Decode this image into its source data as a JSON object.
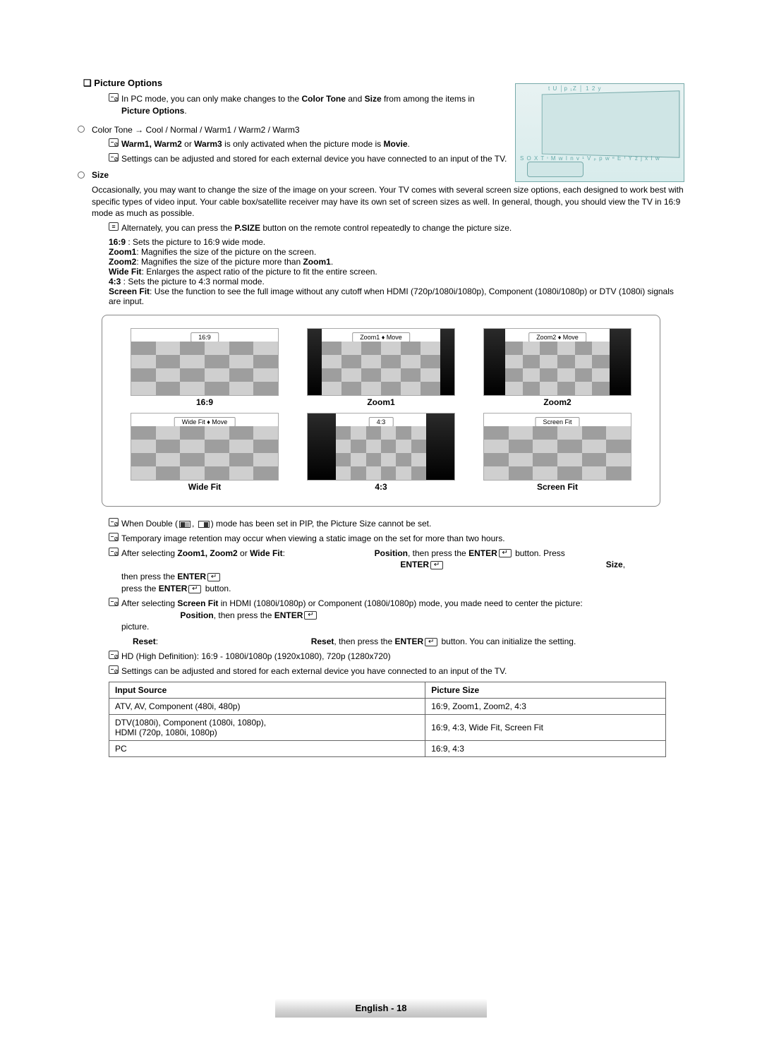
{
  "section_marker": "❑",
  "main_title": "Picture Options",
  "pc_note": {
    "pre": "In PC mode, you can only make changes to the ",
    "b1": "Color Tone",
    "mid": " and ",
    "b2": "Size",
    "post": " from among the items in ",
    "b3": "Picture Options",
    "end": "."
  },
  "color_tone": "Color Tone → Cool / Normal / Warm1 / Warm2 / Warm3",
  "warm_note": {
    "pre": "",
    "b1": "Warm1, Warm2",
    "mid": " or ",
    "b2": "Warm3",
    "post": " is only activated when the picture mode is ",
    "b3": "Movie",
    "end": "."
  },
  "settings_note1": "Settings can be adjusted and stored for each external device you have connected to an input of the TV.",
  "size_label": "Size",
  "size_intro": "Occasionally, you may want to change the size of the image on your screen. Your TV comes with several screen size options, each designed to work best with specific types of video input. Your cable box/satellite receiver may have its own set of screen sizes as well. In general, though, you should view the TV in 16:9 mode as much as possible.",
  "alt_note": {
    "pre": "Alternately, you can press the ",
    "b1": "P.SIZE",
    "post": " button on the remote control repeatedly to change the picture size."
  },
  "modes": {
    "m169": {
      "b": "16:9",
      "t": " : Sets the picture to 16:9 wide mode."
    },
    "zoom1": {
      "b": "Zoom1",
      "t": ": Magnifies the size of the picture on the screen."
    },
    "zoom2": {
      "b": "Zoom2",
      "t": ": Magnifies the size of the picture more than ",
      "b2": "Zoom1",
      "end": "."
    },
    "widefit": {
      "b": "Wide Fit",
      "t": ": Enlarges the aspect ratio of the picture to fit the entire screen."
    },
    "m43": {
      "b": "4:3",
      "t": " : Sets the picture to 4:3 normal mode."
    },
    "screenfit": {
      "b": "Screen Fit",
      "t": ": Use the function to see the full image without any cutoff when HDMI (720p/1080i/1080p), Component (1080i/1080p) or DTV (1080i) signals are input."
    }
  },
  "thumb_labels": {
    "r1": [
      "16:9",
      "Zoom1 ♦ Move",
      "Zoom2 ♦ Move"
    ],
    "r2": [
      "Wide Fit ♦ Move",
      "4:3",
      "Screen Fit"
    ]
  },
  "captions": {
    "r1": [
      "16:9",
      "Zoom1",
      "Zoom2"
    ],
    "r2": [
      "Wide Fit",
      "4:3",
      "Screen Fit"
    ]
  },
  "lower_notes": {
    "pip": {
      "pre": "When Double (",
      "post": ") mode has been set in PIP, the Picture Size cannot be set."
    },
    "retention": "Temporary image retention may occur when viewing a static image on the set for more than two hours.",
    "zoom_sel": {
      "pre": "After selecting ",
      "b1": "Zoom1, Zoom2",
      "mid": " or ",
      "b2": "Wide Fit",
      "colon": ":",
      "pos": "Position",
      "postxt": ", then press the ",
      "enter": "ENTER",
      "press": " button. Press",
      "entera": "ENTER",
      "sizeb": "Size",
      "comma": ",",
      "line3a": "then press the ",
      "line3b": "ENTER",
      "line4a": "press the ",
      "line4b": "ENTER",
      "line4c": " button."
    },
    "screenfit_sel": {
      "pre": "After selecting ",
      "b1": "Screen Fit",
      "post": " in HDMI (1080i/1080p) or Component (1080i/1080p) mode, you made need to center the picture:",
      "pos": "Position",
      "postxt": ", then press the ",
      "enter": "ENTER",
      "pic": "picture."
    },
    "reset": {
      "b1": "Reset",
      "colon": ":",
      "b2": "Reset",
      "t": ", then press the ",
      "enter": "ENTER",
      "end": " button. You can initialize the setting."
    },
    "hd": "HD (High Definition): 16:9 - 1080i/1080p (1920x1080), 720p (1280x720)",
    "settings2": "Settings can be adjusted and stored for each external device you have connected to an input of the TV."
  },
  "table": {
    "h1": "Input Source",
    "h2": "Picture Size",
    "rows": [
      [
        "ATV, AV, Component (480i, 480p)",
        "16:9, Zoom1, Zoom2, 4:3"
      ],
      [
        "DTV(1080i), Component (1080i, 1080p),\nHDMI (720p, 1080i, 1080p)",
        "16:9, 4:3, Wide Fit, Screen Fit"
      ],
      [
        "PC",
        "16:9, 4:3"
      ]
    ]
  },
  "tv_illust": {
    "t1": "t U  │p ₁Z │  1 2 y",
    "t2": "S O X T ᶦ M w I n v ¹   V ₚ  p w ᵉ E ᶠ Y z j x I w",
    "t3": ""
  },
  "footer": "English - 18"
}
